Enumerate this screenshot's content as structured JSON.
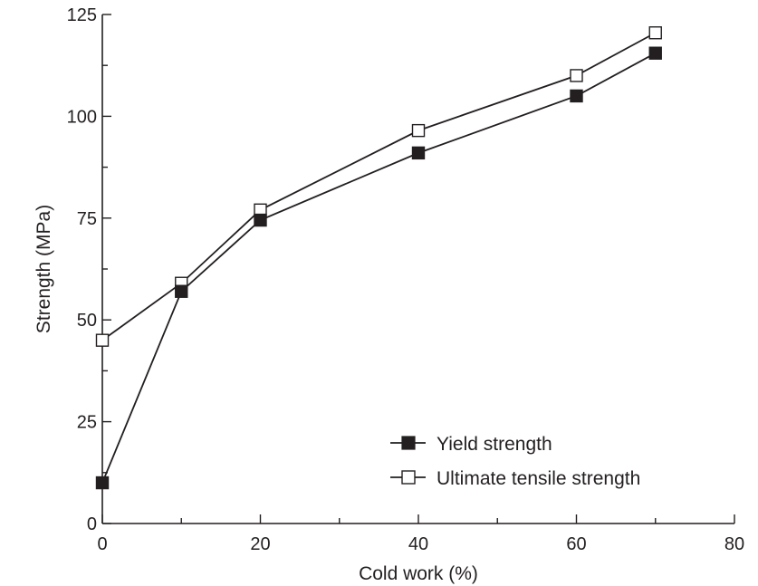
{
  "chart_data": {
    "type": "line",
    "title": "",
    "xlabel": "Cold work (%)",
    "ylabel": "Strength (MPa)",
    "xlim": [
      0,
      80
    ],
    "ylim": [
      0,
      125
    ],
    "x_ticks": [
      0,
      20,
      40,
      60,
      80
    ],
    "x_minor_ticks": [
      10,
      30,
      50,
      70
    ],
    "y_ticks": [
      0,
      25,
      50,
      75,
      100,
      125
    ],
    "y_minor_ticks": [
      12.5,
      37.5,
      62.5,
      87.5,
      112.5
    ],
    "grid": false,
    "legend_position": "bottom-right",
    "series": [
      {
        "name": "Yield strength",
        "marker": "filled-square",
        "color": "#231f20",
        "x": [
          0,
          10,
          20,
          40,
          60,
          70
        ],
        "y": [
          10,
          57,
          74.5,
          91,
          105,
          115.5
        ]
      },
      {
        "name": "Ultimate tensile strength",
        "marker": "open-square",
        "color": "#231f20",
        "x": [
          0,
          10,
          20,
          40,
          60,
          70
        ],
        "y": [
          45,
          59,
          77,
          96.5,
          110,
          120.5
        ]
      }
    ]
  }
}
